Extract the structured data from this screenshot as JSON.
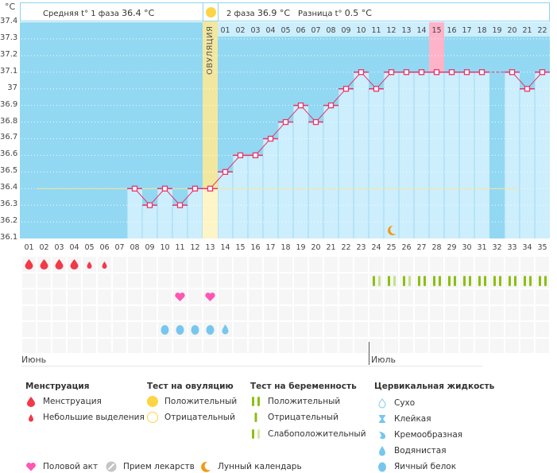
{
  "header": {
    "unit_label": "°C",
    "phase1_label": "Средняя t° 1 фаза",
    "phase1_value": "36.4 °C",
    "phase2_label": "2 фаза",
    "phase2_value": "36.9 °C",
    "diff_label": "Разница t°",
    "diff_value": "0.5 °C",
    "ovulation_label": "ОВУЛЯЦИЯ"
  },
  "colors": {
    "sky": "#92d8f2",
    "bar": "#cdeefc",
    "ovulation": "#f8e89a",
    "highlight_day": "#ffb3c8",
    "line": "#e8336b",
    "coverline": "#f5e59a",
    "positive": "#8cbf10",
    "weak": "#c8e08a",
    "menses": "#f2394a",
    "heart": "#ff55b4",
    "cervical": "#77c6ee",
    "moon": "#f39a12",
    "weekend": "#e0325f"
  },
  "chart_data": {
    "type": "line",
    "title": "Базальная температура",
    "ylabel": "°C",
    "ylim": [
      36.1,
      37.4
    ],
    "yticks": [
      "37.4",
      "37.3",
      "37.2",
      "37.1",
      "37",
      "36.9",
      "36.8",
      "36.7",
      "36.6",
      "36.5",
      "36.4",
      "36.3",
      "36.2",
      "36.1"
    ],
    "coverline": 36.4,
    "ovulation_day": 13,
    "cycle_days": [
      "01",
      "02",
      "03",
      "04",
      "05",
      "06",
      "07",
      "08",
      "09",
      "10",
      "11",
      "12",
      "13",
      "14",
      "15",
      "16",
      "17",
      "18",
      "19",
      "20",
      "21",
      "22",
      "23",
      "24",
      "25",
      "26",
      "27",
      "28",
      "29",
      "30",
      "31",
      "32",
      "33",
      "34",
      "35"
    ],
    "post_ovulation_days": [
      "01",
      "02",
      "03",
      "04",
      "05",
      "06",
      "07",
      "08",
      "09",
      "10",
      "11",
      "12",
      "13",
      "14",
      "15",
      "16",
      "17",
      "18",
      "19",
      "20",
      "21",
      "22"
    ],
    "highlight_post_day": "15",
    "temperatures": [
      null,
      null,
      null,
      null,
      null,
      null,
      null,
      36.4,
      36.3,
      36.4,
      36.3,
      36.4,
      36.4,
      36.5,
      36.6,
      36.6,
      36.7,
      36.8,
      36.9,
      36.8,
      36.9,
      37.0,
      37.1,
      37.0,
      37.1,
      37.1,
      37.1,
      37.1,
      37.1,
      37.1,
      37.1,
      null,
      37.1,
      37.0,
      37.1
    ],
    "dates": [
      "08",
      "09",
      "10",
      "11",
      "12",
      "13",
      "14",
      "15",
      "16",
      "17",
      "18",
      "19",
      "20",
      "21",
      "22",
      "23",
      "24",
      "25",
      "26",
      "27",
      "28",
      "29",
      "30",
      "01",
      "02",
      "03",
      "04",
      "05",
      "06",
      "07",
      "08",
      "09",
      "10",
      "11",
      "12"
    ],
    "weekend_dates_idx": [
      0,
      6,
      7,
      13,
      14,
      20,
      21,
      27,
      28,
      34
    ],
    "months": [
      {
        "label": "Июнь",
        "start_idx": 0
      },
      {
        "label": "Июль",
        "start_idx": 23
      }
    ],
    "menstruation": {
      "1": "heavy",
      "2": "heavy",
      "3": "heavy",
      "4": "heavy",
      "5": "light",
      "6": "light"
    },
    "intercourse_days": [
      11,
      13
    ],
    "cervical_fluid": {
      "10": "egg-white",
      "11": "egg-white",
      "12": "egg-white",
      "13": "egg-white",
      "14": "watery"
    },
    "pregnancy_test": {
      "24": "weak",
      "25": "weak",
      "26": "weak",
      "27": "positive",
      "28": "positive",
      "29": "positive",
      "30": "positive",
      "31": "positive",
      "32": "positive",
      "33": "positive",
      "34": "positive",
      "35": "positive"
    },
    "lunar_day": 25
  },
  "legend": {
    "menstruation": {
      "title": "Менструация",
      "items": [
        "Менструация",
        "Небольшие выделения"
      ]
    },
    "ovulation_test": {
      "title": "Тест на овуляцию",
      "items": [
        "Положительный",
        "Отрицательный"
      ]
    },
    "pregnancy_test": {
      "title": "Тест на беременность",
      "items": [
        "Положительный",
        "Отрицательный",
        "Слабоположительный"
      ]
    },
    "cervical": {
      "title": "Цервикальная жидкость",
      "items": [
        "Сухо",
        "Клейкая",
        "Кремообразная",
        "Водянистая",
        "Яичный белок"
      ]
    },
    "other": [
      "Половой акт",
      "Прием лекарств",
      "Лунный календарь"
    ]
  }
}
